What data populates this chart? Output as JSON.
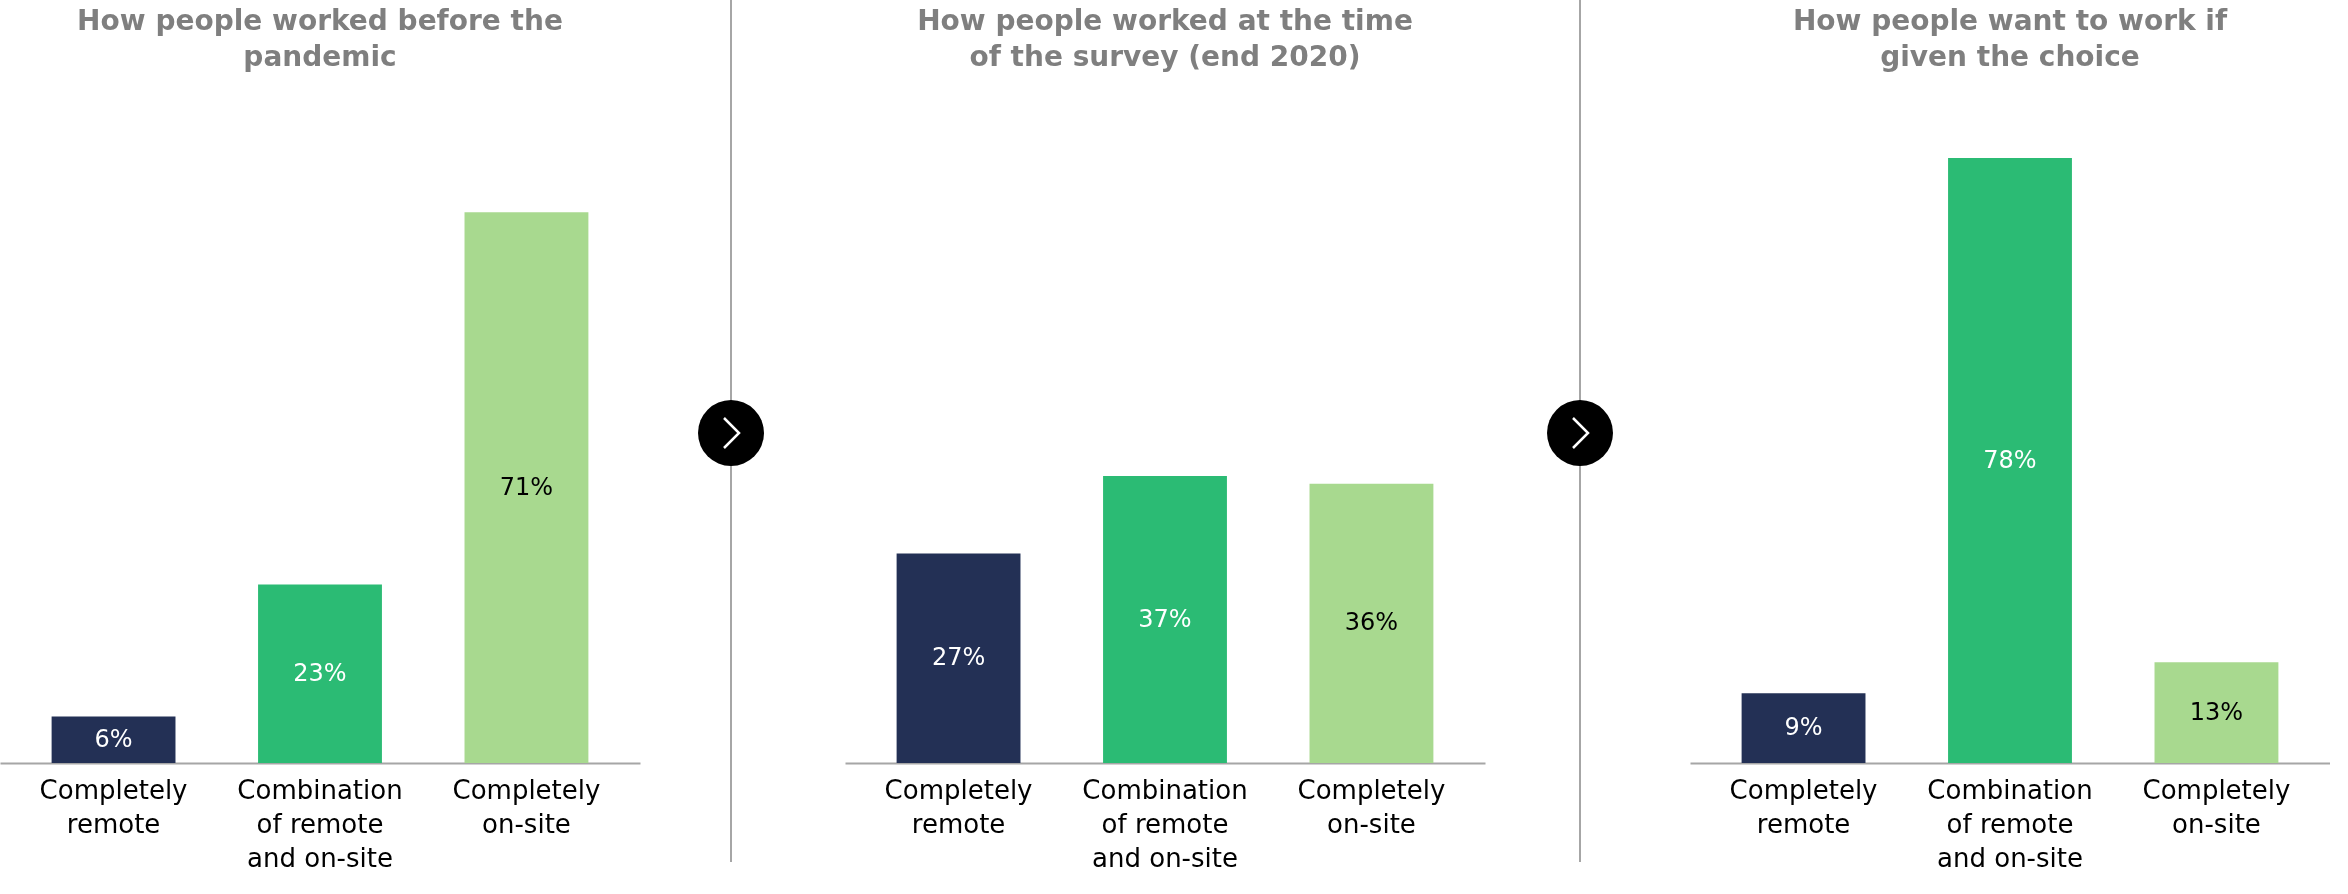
{
  "chart_data": [
    {
      "type": "bar",
      "title": "How people worked before the pandemic",
      "categories": [
        "Completely remote",
        "Combination of remote and on-site",
        "Completely on-site"
      ],
      "values": [
        6,
        23,
        71
      ],
      "colors": [
        "#233055",
        "#2bbb74",
        "#a8d98f"
      ],
      "value_labels": [
        "6%",
        "23%",
        "71%"
      ]
    },
    {
      "type": "bar",
      "title": "How people worked at the time of the survey (end 2020)",
      "categories": [
        "Completely remote",
        "Combination of remote and on-site",
        "Completely on-site"
      ],
      "values": [
        27,
        37,
        36
      ],
      "colors": [
        "#233055",
        "#2bbb74",
        "#a8d98f"
      ],
      "value_labels": [
        "27%",
        "37%",
        "36%"
      ]
    },
    {
      "type": "bar",
      "title": "How people want to work if given the choice",
      "categories": [
        "Completely remote",
        "Combination of remote and on-site",
        "Completely on-site"
      ],
      "values": [
        9,
        78,
        13
      ],
      "colors": [
        "#233055",
        "#2bbb74",
        "#a8d98f"
      ],
      "value_labels": [
        "9%",
        "78%",
        "13%"
      ]
    }
  ]
}
